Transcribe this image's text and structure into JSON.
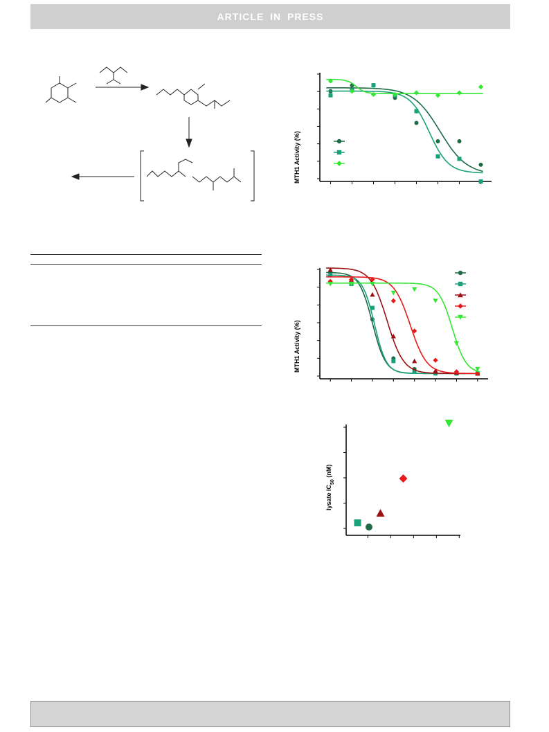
{
  "header": {
    "banner_text": "ARTICLE IN PRESS"
  },
  "colors": {
    "dark_green": "#1e6b45",
    "teal": "#1aa07a",
    "bright_green": "#33e633",
    "dark_red": "#9b1010",
    "red": "#e61919"
  },
  "icons": [
    "right-arrow-icon",
    "down-arrow-icon",
    "left-arrow-icon"
  ],
  "chart_data": [
    {
      "type": "line",
      "panel": "top",
      "ylabel": "MTH1 Activity (%)",
      "x": [
        1,
        2,
        3,
        4,
        5,
        6,
        7,
        8
      ],
      "ylim": [
        -10,
        120
      ],
      "series": [
        {
          "marker": "circle",
          "color": "#1e6b45",
          "values": [
            98,
            105,
            105,
            90,
            60,
            38,
            38,
            10
          ],
          "curve": {
            "top": 102,
            "bottom": -2,
            "mid": 6.1,
            "slope": 1.0
          }
        },
        {
          "marker": "square",
          "color": "#1aa07a",
          "values": [
            93,
            99,
            105,
            93,
            74,
            20,
            17,
            -10
          ],
          "curve": {
            "top": 98,
            "bottom": 0,
            "mid": 5.6,
            "slope": 1.4
          }
        },
        {
          "marker": "diamond",
          "color": "#33e633",
          "values": [
            110,
            98,
            94,
            94,
            96,
            93,
            96,
            103
          ],
          "curve": {
            "top": 112,
            "bottom": 95,
            "mid": 2.2,
            "slope": 3.0
          }
        }
      ],
      "legend_position": "bottom-left"
    },
    {
      "type": "line",
      "panel": "middle",
      "ylabel": "MTH1 Activity (%)",
      "x": [
        1,
        2,
        3,
        4,
        5,
        6,
        7,
        8
      ],
      "ylim": [
        -5,
        120
      ],
      "series": [
        {
          "marker": "circle",
          "color": "#1e6b45",
          "values": [
            115,
            103,
            62,
            18,
            6,
            2,
            1,
            1
          ],
          "curve": {
            "top": 115,
            "bottom": 1,
            "mid": 3.0,
            "slope": 2.0
          }
        },
        {
          "marker": "square",
          "color": "#1aa07a",
          "values": [
            112,
            102,
            75,
            15,
            3,
            1,
            1,
            1
          ],
          "curve": {
            "top": 112,
            "bottom": 1,
            "mid": 3.1,
            "slope": 2.2
          }
        },
        {
          "marker": "triangle-up",
          "color": "#9b1010",
          "values": [
            118,
            107,
            90,
            43,
            15,
            4,
            2,
            1
          ],
          "curve": {
            "top": 120,
            "bottom": 1,
            "mid": 3.7,
            "slope": 1.6
          }
        },
        {
          "marker": "diamond",
          "color": "#e61919",
          "values": [
            105,
            107,
            107,
            83,
            49,
            16,
            3,
            1
          ],
          "curve": {
            "top": 110,
            "bottom": 1,
            "mid": 4.8,
            "slope": 1.6
          }
        },
        {
          "marker": "triangle-down",
          "color": "#33e633",
          "values": [
            102,
            102,
            102,
            92,
            96,
            83,
            35,
            6
          ],
          "curve": {
            "top": 103,
            "bottom": 1,
            "mid": 6.8,
            "slope": 1.9
          }
        }
      ],
      "legend_position": "top-right"
    },
    {
      "type": "scatter",
      "panel": "bottom",
      "ylabel": "lysate IC50 (nM)",
      "ylabel_main": "lysate IC",
      "ylabel_sub": "50",
      "ylabel_tail": " (nM)",
      "xlim": [
        0,
        5
      ],
      "ylim": [
        0,
        4
      ],
      "points": [
        {
          "marker": "circle",
          "color": "#1e6b45",
          "x": 1.0,
          "y": 0.05
        },
        {
          "marker": "square",
          "color": "#1aa07a",
          "x": 0.5,
          "y": 0.2
        },
        {
          "marker": "triangle-up",
          "color": "#9b1010",
          "x": 1.5,
          "y": 0.55
        },
        {
          "marker": "diamond",
          "color": "#e61919",
          "x": 2.5,
          "y": 1.8
        },
        {
          "marker": "triangle-down",
          "color": "#33e633",
          "x": 4.5,
          "y": 3.8
        }
      ]
    }
  ]
}
